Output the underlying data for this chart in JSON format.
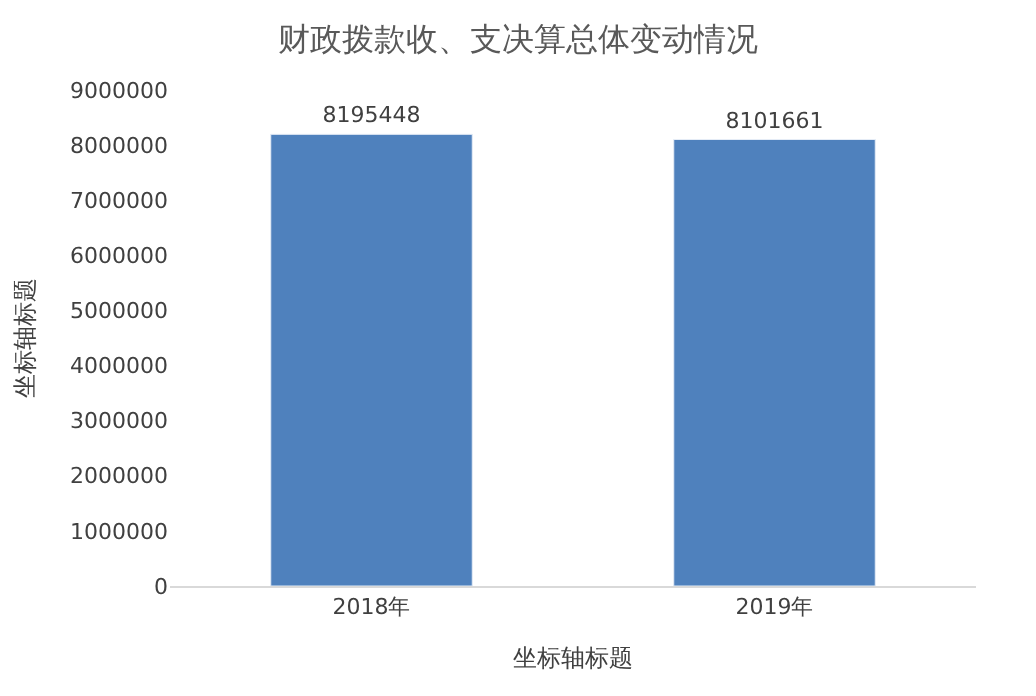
{
  "chart_data": {
    "type": "bar",
    "title": "财政拨款收、支决算总体变动情况",
    "xlabel": "坐标轴标题",
    "ylabel": "坐标轴标题",
    "categories": [
      "2018年",
      "2019年"
    ],
    "values": [
      8195448,
      8101661
    ],
    "color": "#4f81bd",
    "ylim": [
      0,
      9000000
    ],
    "yticks": [
      0,
      1000000,
      2000000,
      3000000,
      4000000,
      5000000,
      6000000,
      7000000,
      8000000,
      9000000
    ],
    "data_labels": true
  }
}
